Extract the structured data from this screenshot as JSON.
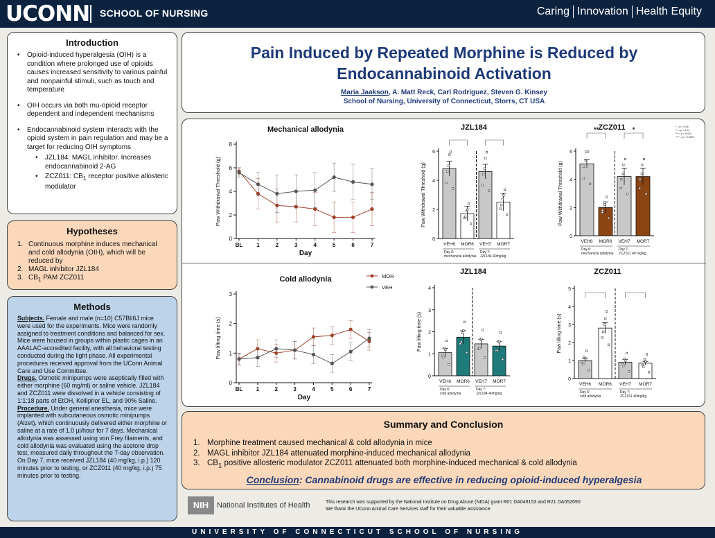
{
  "header": {
    "logo": "UCONN",
    "school": "SCHOOL OF NURSING",
    "tagline": [
      "Caring",
      "Innovation",
      "Health Equity"
    ]
  },
  "title": {
    "line1": "Pain Induced by Repeated Morphine is Reduced by",
    "line2": "Endocannabinoid Activation",
    "author_first": "Maria Jaakson",
    "authors_rest": ", A. Matt Reck, Carl Rodriguez, Steven G. Kinsey",
    "affiliation": "School of Nursing, University of Connecticut, Storrs, CT USA"
  },
  "intro": {
    "heading": "Introduction",
    "b1": "Opioid-induced hyperalgesia (OIH) is a condition where prolonged use of opioids causes increased sensitivity to various painful and nonpainful stimuli, such as touch and temperature",
    "b2": "OIH occurs via both mu-opioid receptor dependent and independent mechanisms",
    "b3": "Endocannabinoid system interacts with the opioid system in pain regulation and may be a target for reducing OIH symptoms",
    "s1": "JZL184: MAGL inhibitor. Increases endocannabinoid 2-AG",
    "s2_pre": "ZCZ011: CB",
    "s2_sub": "1",
    "s2_post": " receptor positive allosteric modulator"
  },
  "hypotheses": {
    "heading": "Hypotheses",
    "n1": "1.",
    "i1": "Continuous morphine induces mechanical and cold allodynia (OIH), which will be reduced by",
    "n2": "2.",
    "i2": "MAGL inhibitor JZL184",
    "n3": "3.",
    "i3_pre": "CB",
    "i3_sub": "1",
    "i3_post": " PAM ZCZ011"
  },
  "methods": {
    "heading": "Methods",
    "subjects_label": "Subjects.",
    "subjects": " Female and male (n=10) C57Bl/6J mice were used for the experiments. Mice were randomly assigned to treatment conditions and balanced for sex. Mice were housed in groups within plastic cages in an AAALAC-accredited facility, with all behavioral testing conducted during the light phase. All experimental procedures received approval from the UConn Animal Care and Use Committee.",
    "drugs_label": "Drugs.",
    "drugs": " Osmotic minipumps were aseptically filled with either morphine (60 mg/ml) or saline vehicle. JZL184 and ZCZ011 were dissolved in a vehicle consisting of 1:1:18 parts of EtOH, Kolliphor EL, and 90% Saline.",
    "procedure_label": "Procedure.",
    "procedure": " Under general anesthesia, mice were implanted with subcutaneous osmotic minipumps (Alzet), which continuously delivered either morphine or saline at a rate of 1.0 µl/hour for 7 days. Mechanical allodynia was assessed using von Frey filaments, and cold allodynia was evaluated using the acetone drop test, measured daily throughout the 7-day observation. On Day 7, mice received JZL184 (40 mg/kg, i.p.) 120 minutes prior to testing, or ZCZ011 (40 mg/kg, i.p.) 75 minutes prior to testing."
  },
  "summary": {
    "heading": "Summary and Conclusion",
    "n1": "1.",
    "i1": "Morphine treatment caused mechanical & cold allodynia in mice",
    "n2": "2.",
    "i2": "MAGL inhibitor JZL184 attenuated morphine-induced mechanical allodynia",
    "n3": "3.",
    "i3_pre": "CB",
    "i3_sub": "1",
    "i3_post": " positive allosteric modulator ZCZ011 attenuated both morphine-induced mechanical & cold allodynia",
    "conclusion_label": "Conclusion",
    "conclusion": ": Cannabinoid drugs are effective in reducing opioid-induced hyperalgesia"
  },
  "footer": {
    "nih_logo": "NIH",
    "nih_name": "National Institutes of Health",
    "ack1": "This research was supported by the National Institute on Drug Abuse (NIDA) grant R01 DA048153 and R21 DA052690",
    "ack2": "We thank the UConn Animal Care Services staff for their valuable assistance.",
    "bottom": "UNIVERSITY OF CONNECTICUT SCHOOL OF NURSING"
  },
  "colors": {
    "mor": "#a0412b",
    "veh": "#555555",
    "bar_gray": "#c8c8c8",
    "teal": "#1f7a7a",
    "brown": "#8b4513",
    "navy": "#0c2340"
  },
  "chart_data": [
    {
      "type": "line",
      "title": "Mechanical allodynia",
      "xlabel": "Day",
      "ylabel": "Paw Withdrawal Threshold (g)",
      "x": [
        "BL",
        "1",
        "2",
        "3",
        "4",
        "5",
        "6",
        "7"
      ],
      "ylim": [
        0,
        8
      ],
      "yticks": [
        "0",
        "2",
        "4",
        "6",
        "8"
      ],
      "series": [
        {
          "name": "MOR",
          "values": [
            5.7,
            3.8,
            2.8,
            2.7,
            2.5,
            1.8,
            1.8,
            2.5
          ],
          "err": [
            0.3,
            1.3,
            1.4,
            1.3,
            1.4,
            1.3,
            1.3,
            1.4
          ]
        },
        {
          "name": "VEH",
          "values": [
            5.6,
            4.6,
            3.8,
            4.0,
            4.1,
            5.2,
            4.8,
            4.6
          ],
          "err": [
            0.4,
            1.0,
            1.6,
            1.4,
            1.5,
            1.2,
            1.5,
            1.3
          ]
        }
      ]
    },
    {
      "type": "bar",
      "title": "JZL184",
      "ylabel": "Paw Withdrawal Threshold (g)",
      "categories": [
        "VEH6",
        "MOR6",
        "VEH7",
        "MOR7"
      ],
      "values": [
        4.8,
        1.7,
        4.6,
        2.5
      ],
      "err": [
        0.5,
        0.5,
        0.5,
        0.6
      ],
      "ylim": [
        0,
        6
      ],
      "yticks": [
        "0",
        "2",
        "4",
        "6"
      ],
      "group_labels": [
        "Day 6:\nmechanical allodynia",
        "Day 7:\nJZL184 40mg/kg"
      ]
    },
    {
      "type": "bar",
      "title": "ZCZ011",
      "ylabel": "Paw Withdrawal Threshold (g)",
      "categories": [
        "VEH6",
        "MOR6",
        "VEH7",
        "MOR7"
      ],
      "values": [
        5.1,
        2.0,
        4.2,
        4.2
      ],
      "err": [
        0.3,
        0.4,
        0.6,
        0.6
      ],
      "ylim": [
        0,
        6
      ],
      "yticks": [
        "0",
        "2",
        "4",
        "6"
      ],
      "significance": [
        "**",
        "*"
      ],
      "legend": [
        "* = p < 0.05",
        "** = p < 0.01",
        "*** = p < 0.001",
        "**** = p < 0.0001"
      ],
      "group_labels": [
        "Day 6:\nmechanical allodynia",
        "Day 7:\nZCZ011 40 mg/kg"
      ]
    },
    {
      "type": "line",
      "title": "Cold allodynia",
      "xlabel": "Day",
      "ylabel": "Paw lifting time (s)",
      "x": [
        "BL",
        "1",
        "2",
        "3",
        "4",
        "5",
        "6",
        "7"
      ],
      "ylim": [
        0,
        3
      ],
      "yticks": [
        "0",
        "1",
        "2",
        "3"
      ],
      "legend": [
        "MOR",
        "VEH"
      ],
      "series": [
        {
          "name": "MOR",
          "values": [
            0.8,
            1.15,
            1.0,
            1.1,
            1.55,
            1.6,
            1.8,
            1.4
          ],
          "err": [
            0.2,
            0.3,
            0.3,
            0.3,
            0.3,
            0.3,
            0.3,
            0.3
          ]
        },
        {
          "name": "VEH",
          "values": [
            0.8,
            0.85,
            1.15,
            1.1,
            0.95,
            0.65,
            1.05,
            1.5
          ],
          "err": [
            0.2,
            0.3,
            0.3,
            0.3,
            0.3,
            0.3,
            0.3,
            0.3
          ]
        }
      ]
    },
    {
      "type": "bar",
      "title": "JZL184",
      "ylabel": "Paw lifting time (s)",
      "categories": [
        "VEH6",
        "MOR6",
        "VEH7",
        "MOR7"
      ],
      "values": [
        1.05,
        1.75,
        1.45,
        1.35
      ],
      "err": [
        0.2,
        0.3,
        0.2,
        0.2
      ],
      "ylim": [
        0,
        4
      ],
      "yticks": [
        "0",
        "1",
        "2",
        "3",
        "4"
      ],
      "group_labels": [
        "Day 6:\ncold allodynia",
        "Day 7:\nJZL184 40mg/kg"
      ]
    },
    {
      "type": "bar",
      "title": "ZCZ011",
      "ylabel": "Paw lifting time (s)",
      "categories": [
        "VEH6",
        "MOR6",
        "VEH7",
        "MOR7"
      ],
      "values": [
        1.0,
        2.8,
        0.9,
        0.85
      ],
      "err": [
        0.1,
        0.3,
        0.15,
        0.1
      ],
      "ylim": [
        0,
        5
      ],
      "yticks": [
        "0",
        "1",
        "2",
        "3",
        "4",
        "5"
      ],
      "group_labels": [
        "Day 6:\ncold allodynia",
        "Day 7:\nZCZ011 40mg/kg"
      ]
    }
  ]
}
